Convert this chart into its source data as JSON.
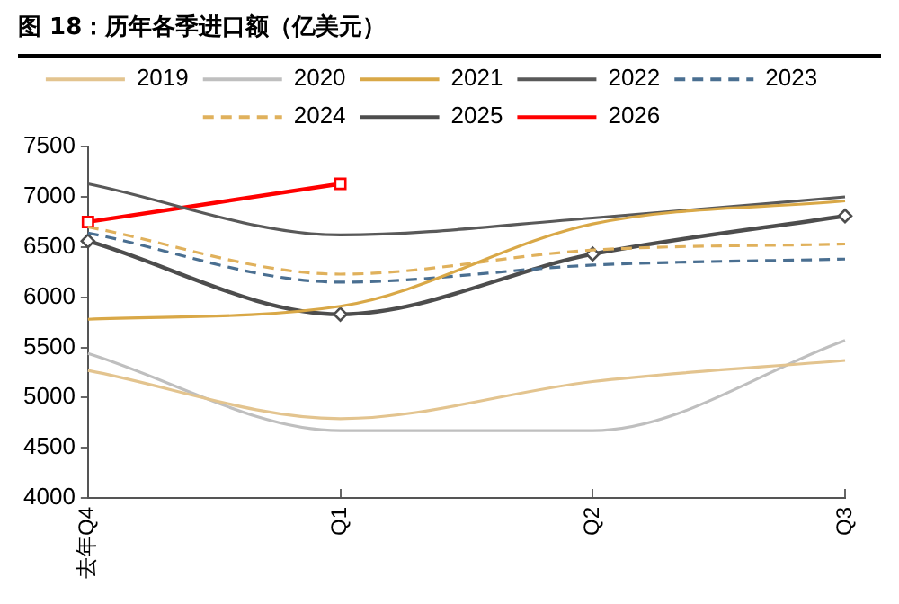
{
  "chart_data": {
    "type": "line",
    "title": "图 18：历年各季进口额（亿美元）",
    "categories": [
      "去年Q4",
      "Q1",
      "Q2",
      "Q3"
    ],
    "series": [
      {
        "name": "2019",
        "color": "#e3c48f",
        "values": [
          5270,
          4790,
          5160,
          5370
        ],
        "marker": "none",
        "line_style": "solid"
      },
      {
        "name": "2020",
        "color": "#bfbfbf",
        "values": [
          5440,
          4670,
          4670,
          5570
        ],
        "marker": "none",
        "line_style": "solid"
      },
      {
        "name": "2021",
        "color": "#d9a847",
        "values": [
          5780,
          5910,
          6730,
          6960
        ],
        "marker": "none",
        "line_style": "solid"
      },
      {
        "name": "2022",
        "color": "#595959",
        "values": [
          7130,
          6620,
          6790,
          7000
        ],
        "marker": "none",
        "line_style": "solid"
      },
      {
        "name": "2023",
        "color": "#4a6f91",
        "values": [
          6640,
          6150,
          6320,
          6380
        ],
        "marker": "none",
        "line_style": "dashed"
      },
      {
        "name": "2024",
        "color": "#e0b15c",
        "values": [
          6700,
          6230,
          6470,
          6530
        ],
        "marker": "none",
        "line_style": "dashed"
      },
      {
        "name": "2025",
        "color": "#4d4d4d",
        "values": [
          6560,
          5830,
          6430,
          6810
        ],
        "marker": "diamond",
        "line_style": "solid"
      },
      {
        "name": "2026",
        "color": "#ff0000",
        "values": [
          6750,
          7130,
          null,
          null
        ],
        "marker": "square",
        "line_style": "solid"
      }
    ],
    "ylim": [
      4000,
      7500
    ],
    "yticks": [
      4000,
      4500,
      5000,
      5500,
      6000,
      6500,
      7000,
      7500
    ],
    "grid": false,
    "legend": "top"
  }
}
